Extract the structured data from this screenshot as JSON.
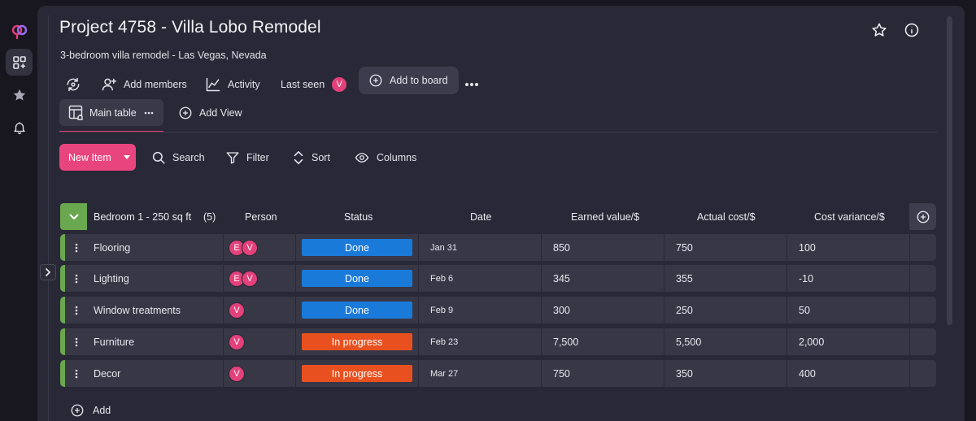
{
  "project": {
    "title": "Project 4758 - Villa Lobo Remodel",
    "subtitle": "3-bedroom villa remodel - Las Vegas, Nevada"
  },
  "toolbar": {
    "add_members": "Add members",
    "activity": "Activity",
    "last_seen": "Last seen",
    "last_seen_avatar": "V",
    "add_to_board": "Add to board"
  },
  "views": {
    "main_table": "Main table",
    "add_view": "Add View"
  },
  "actions": {
    "new_item": "New Item",
    "search": "Search",
    "filter": "Filter",
    "sort": "Sort",
    "columns": "Columns"
  },
  "group": {
    "name": "Bedroom 1 - 250 sq ft",
    "count": "(5)",
    "columns": {
      "person": "Person",
      "status": "Status",
      "date": "Date",
      "earned": "Earned value/$",
      "actual": "Actual cost/$",
      "variance": "Cost variance/$"
    }
  },
  "rows": [
    {
      "name": "Flooring",
      "people": [
        "E",
        "V"
      ],
      "status": "Done",
      "date": "Jan 31",
      "earned": "850",
      "actual": "750",
      "variance": "100"
    },
    {
      "name": "Lighting",
      "people": [
        "E",
        "V"
      ],
      "status": "Done",
      "date": "Feb 6",
      "earned": "345",
      "actual": "355",
      "variance": "-10"
    },
    {
      "name": "Window treatments",
      "people": [
        "V"
      ],
      "status": "Done",
      "date": "Feb 9",
      "earned": "300",
      "actual": "250",
      "variance": "50"
    },
    {
      "name": "Furniture",
      "people": [
        "V"
      ],
      "status": "In progress",
      "date": "Feb 23",
      "earned": "7,500",
      "actual": "5,500",
      "variance": "2,000"
    },
    {
      "name": "Decor",
      "people": [
        "V"
      ],
      "status": "In progress",
      "date": "Mar 27",
      "earned": "750",
      "actual": "350",
      "variance": "400"
    }
  ],
  "add_row": "Add",
  "colors": {
    "accent": "#e8457e",
    "group": "#6aa84f",
    "done": "#1a7ad9",
    "in_progress": "#e9501f",
    "avatar": "#e2417a"
  }
}
